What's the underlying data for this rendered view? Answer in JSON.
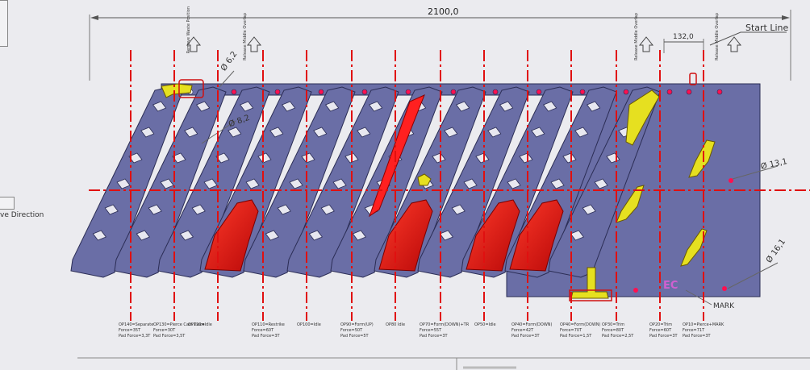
{
  "drawing": {
    "overall_length": "2100,0",
    "pitch": "132,0",
    "start_line": "Start Line",
    "mark": "MARK",
    "move_direction": "ve Direction",
    "hole_dia_1": "Ø 6,2",
    "hole_dia_2": "Ø 8,2",
    "hole_dia_3": "Ø 13,1",
    "hole_dia_4": "Ø 16,1",
    "markers": [
      {
        "label": "Remove Waste Position"
      },
      {
        "label": "Release Middle Overlap"
      },
      {
        "label": "Release Middle Overlap"
      },
      {
        "label": "Release Middle Overlap"
      }
    ],
    "stations": [
      {
        "title": "OP140=Separate",
        "l2": "Force=35T",
        "l3": "Pad Force=3,3T"
      },
      {
        "title": "OP130=Pierce Cam Piece",
        "l2": "Force=30T",
        "l3": "Pad Force=3,5T"
      },
      {
        "title": "OP120=Idle",
        "l2": "",
        "l3": ""
      },
      {
        "title": "OP110=Restrike",
        "l2": "Force=60T",
        "l3": "Pad Force=3T"
      },
      {
        "title": "OP100=Idle",
        "l2": "",
        "l3": ""
      },
      {
        "title": "OP90=Form(UP)",
        "l2": "Force=50T",
        "l3": "Pad Force=5T"
      },
      {
        "title": "OP80 Idle",
        "l2": "",
        "l3": ""
      },
      {
        "title": "OP70=Form(DOWN)+TR",
        "l2": "Force=55T",
        "l3": "Pad Force=3T"
      },
      {
        "title": "OP50=Idle",
        "l2": "",
        "l3": ""
      },
      {
        "title": "OP40=Form(DOWN)",
        "l2": "Force=42T",
        "l3": "Pad Force=3T"
      },
      {
        "title": "OP40=Form(DOWN)",
        "l2": "Force=70T",
        "l3": "Pad Force=1,5T"
      },
      {
        "title": "OP30=Trim",
        "l2": "Force=80T",
        "l3": "Pad Force=2,5T"
      },
      {
        "title": "OP20=Trim",
        "l2": "Force=60T",
        "l3": "Pad Force=3T"
      },
      {
        "title": "OP10=Pierce+MARK",
        "l2": "Force=71T",
        "l3": "Pad Force=3T"
      }
    ],
    "colors": {
      "strip": "#6a6ea6",
      "strip_edge": "#2b2d55",
      "formed": "#e01010",
      "trim": "#e6e020",
      "centerline": "#e01010",
      "dim_line": "#555555"
    }
  }
}
